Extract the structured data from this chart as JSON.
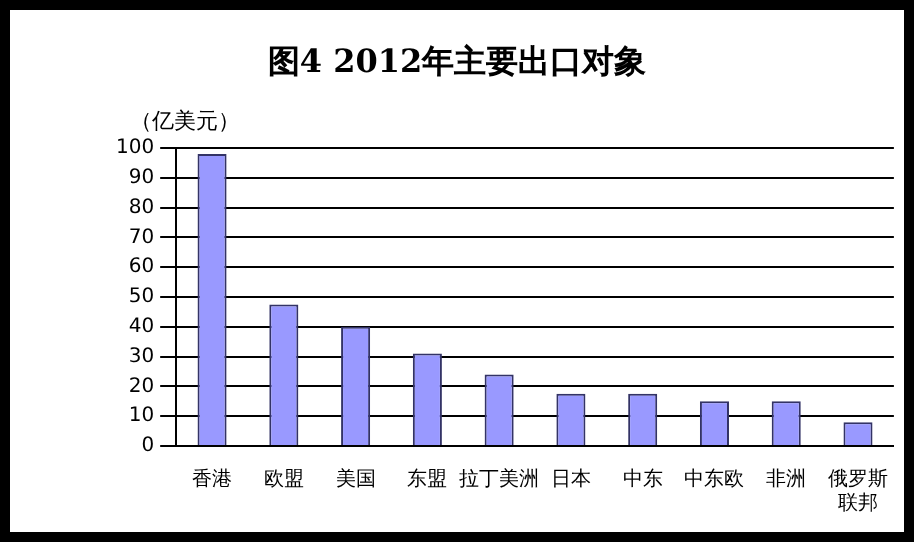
{
  "chart_data": {
    "type": "bar",
    "title": "图4  2012年主要出口对象",
    "ylabel": "（亿美元）",
    "categories": [
      "香港",
      "欧盟",
      "美国",
      "东盟",
      "拉丁美洲",
      "日本",
      "中东",
      "中东欧",
      "非洲",
      "俄罗斯联邦"
    ],
    "values": [
      98,
      47.5,
      40,
      31,
      24,
      17.5,
      17.5,
      15,
      15,
      8
    ],
    "color": "#9999ff",
    "ylim": [
      0,
      100
    ],
    "yticks": [
      0,
      10,
      20,
      30,
      40,
      50,
      60,
      70,
      80,
      90,
      100
    ],
    "grid": "y",
    "legend": false
  }
}
